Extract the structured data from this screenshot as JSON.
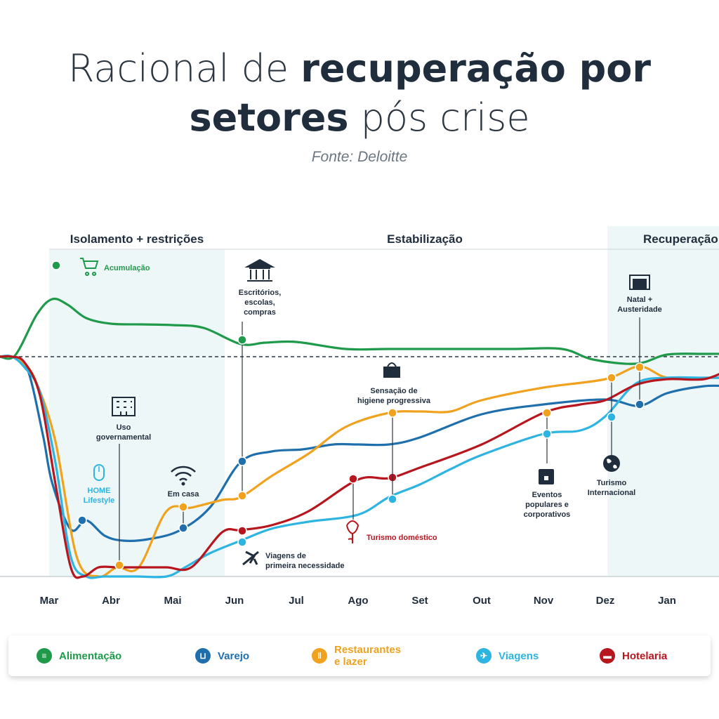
{
  "title": {
    "line1_light": "Racional de ",
    "line1_bold": "recuperação por",
    "line2_bold": "setores",
    "line2_light": " pós crise"
  },
  "source": "Fonte: Deloitte",
  "colors": {
    "alimentacao": "#1f9a4a",
    "varejo": "#1f6fad",
    "restaurantes": "#f0a21f",
    "viagens": "#2db4e0",
    "hotelaria": "#b8161e",
    "text": "#1f2d3d",
    "phase_bg": "#eef7f8"
  },
  "chart_data": {
    "type": "line",
    "categories": [
      "Mar",
      "Abr",
      "Mai",
      "Jun",
      "Jul",
      "Ago",
      "Set",
      "Out",
      "Nov",
      "Dez",
      "Jan"
    ],
    "phases": [
      "Isolamento + restrições",
      "Estabilização",
      "Recuperação"
    ],
    "baseline_dashed": true,
    "series": [
      {
        "name": "Alimentação",
        "key": "alimentacao",
        "x": [
          -0.8,
          -0.55,
          -0.2,
          0.05,
          0.3,
          0.6,
          1.0,
          1.5,
          2.0,
          2.5,
          3.1,
          3.5,
          4.0,
          4.8,
          5.5,
          6.5,
          7.5,
          8.3,
          8.8,
          9.5,
          10.0,
          10.6,
          11.0
        ],
        "y": [
          0,
          2,
          60,
          82,
          74,
          55,
          47,
          46,
          45,
          41,
          18,
          20,
          21,
          11,
          11,
          11,
          11,
          11,
          -4,
          -10,
          3,
          4,
          4
        ]
      },
      {
        "name": "Varejo",
        "key": "varejo",
        "x": [
          -0.8,
          -0.6,
          -0.35,
          -0.1,
          0.05,
          0.35,
          0.6,
          0.9,
          1.2,
          1.6,
          2.1,
          2.6,
          3.1,
          3.6,
          4.1,
          4.6,
          5.0,
          5.5,
          6.0,
          7.0,
          8.0,
          9.0,
          9.55,
          10.0,
          10.6,
          11.0
        ],
        "y": [
          0,
          0,
          -18,
          -112,
          -180,
          -246,
          -233,
          -255,
          -262,
          -260,
          -248,
          -215,
          -150,
          -135,
          -132,
          -125,
          -125,
          -125,
          -115,
          -82,
          -68,
          -61,
          -70,
          -52,
          -42,
          -42
        ]
      },
      {
        "name": "Restaurantes e lazer",
        "key": "restaurantes",
        "x": [
          -0.8,
          -0.6,
          -0.4,
          -0.2,
          0.1,
          0.45,
          0.8,
          1.1,
          1.45,
          1.9,
          2.3,
          2.8,
          3.1,
          3.6,
          4.2,
          4.8,
          5.5,
          6.0,
          6.5,
          7.0,
          8.0,
          9.0,
          9.55,
          10.0,
          10.6,
          11.0
        ],
        "y": [
          0,
          0,
          -10,
          -38,
          -120,
          -286,
          -313,
          -300,
          -300,
          -220,
          -215,
          -204,
          -200,
          -170,
          -138,
          -100,
          -80,
          -78,
          -78,
          -62,
          -44,
          -32,
          -14,
          -30,
          -30,
          -30
        ]
      },
      {
        "name": "Viagens",
        "key": "viagens",
        "x": [
          -0.8,
          -0.6,
          -0.4,
          -0.15,
          0.1,
          0.35,
          0.6,
          0.9,
          1.4,
          1.9,
          2.2,
          2.6,
          3.1,
          3.6,
          4.2,
          5.0,
          5.5,
          6.0,
          6.5,
          7.0,
          8.0,
          8.6,
          9.0,
          9.5,
          10.0,
          10.6,
          11.0
        ],
        "y": [
          0,
          0,
          -15,
          -50,
          -150,
          -285,
          -313,
          -313,
          -313,
          -313,
          -300,
          -280,
          -262,
          -245,
          -235,
          -225,
          -200,
          -182,
          -160,
          -140,
          -110,
          -105,
          -85,
          -38,
          -30,
          -30,
          -30
        ]
      },
      {
        "name": "Hotelaria",
        "key": "hotelaria",
        "x": [
          -0.8,
          -0.6,
          -0.4,
          -0.15,
          0.1,
          0.35,
          0.55,
          0.8,
          1.1,
          1.45,
          1.9,
          2.3,
          2.8,
          3.1,
          3.6,
          4.2,
          5.0,
          5.5,
          6.0,
          7.0,
          8.0,
          8.6,
          9.0,
          9.5,
          10.0,
          10.6,
          11.0
        ],
        "y": [
          0,
          0,
          -8,
          -55,
          -180,
          -300,
          -313,
          -300,
          -300,
          -300,
          -300,
          -300,
          -250,
          -247,
          -240,
          -220,
          -175,
          -173,
          -158,
          -125,
          -80,
          -68,
          -62,
          -40,
          -32,
          -32,
          -18
        ]
      }
    ],
    "annotations": [
      {
        "id": "acumulacao",
        "text": "Acumulação",
        "series": "alimentacao",
        "color": "#1f9a4a",
        "icon": "cart-icon"
      },
      {
        "id": "escritorios",
        "lines": [
          "Escritórios,",
          "escolas,",
          "compras"
        ],
        "series": "alimentacao",
        "icon": "bank-icon"
      },
      {
        "id": "uso",
        "lines": [
          "Uso",
          "governamental"
        ],
        "series": "restaurantes",
        "icon": "building-icon"
      },
      {
        "id": "home",
        "lines": [
          "HOME",
          "Lifestyle"
        ],
        "series": "varejo",
        "color": "#2db4e0",
        "icon": "mouse-icon"
      },
      {
        "id": "emcasa",
        "text": "Em casa",
        "series": "varejo",
        "icon": "wifi-icon"
      },
      {
        "id": "viagens_nec",
        "lines": [
          "Viagens de",
          "primeira necessidade"
        ],
        "series": "viagens",
        "icon": "plane-icon"
      },
      {
        "id": "turismo_dom",
        "text": "Turismo doméstico",
        "series": "hotelaria",
        "color": "#b8161e",
        "icon": "flower-icon"
      },
      {
        "id": "higiene",
        "lines": [
          "Sensação de",
          "higiene progressiva"
        ],
        "series": "restaurantes",
        "icon": "tissue-icon"
      },
      {
        "id": "eventos",
        "lines": [
          "Eventos",
          "populares e",
          "corporativos"
        ],
        "series": "viagens",
        "icon": "calendar-icon"
      },
      {
        "id": "turismo_int",
        "lines": [
          "Turismo",
          "Internacional"
        ],
        "series": "viagens",
        "icon": "globe-icon"
      },
      {
        "id": "natal",
        "lines": [
          "Natal +",
          "Austeridade"
        ],
        "series": "varejo",
        "icon": "money-icon"
      }
    ]
  },
  "legend": [
    {
      "key": "alimentacao",
      "label": "Alimentação",
      "icon": "food-icon",
      "glyph": "≡"
    },
    {
      "key": "varejo",
      "label": "Varejo",
      "icon": "cart-icon",
      "glyph": "⊔"
    },
    {
      "key": "restaurantes",
      "label": "Restaurantes\ne lazer",
      "icon": "cutlery-icon",
      "glyph": "ǁ"
    },
    {
      "key": "viagens",
      "label": "Viagens",
      "icon": "plane-icon",
      "glyph": "✈"
    },
    {
      "key": "hotelaria",
      "label": "Hotelaria",
      "icon": "bed-icon",
      "glyph": "▬"
    }
  ]
}
